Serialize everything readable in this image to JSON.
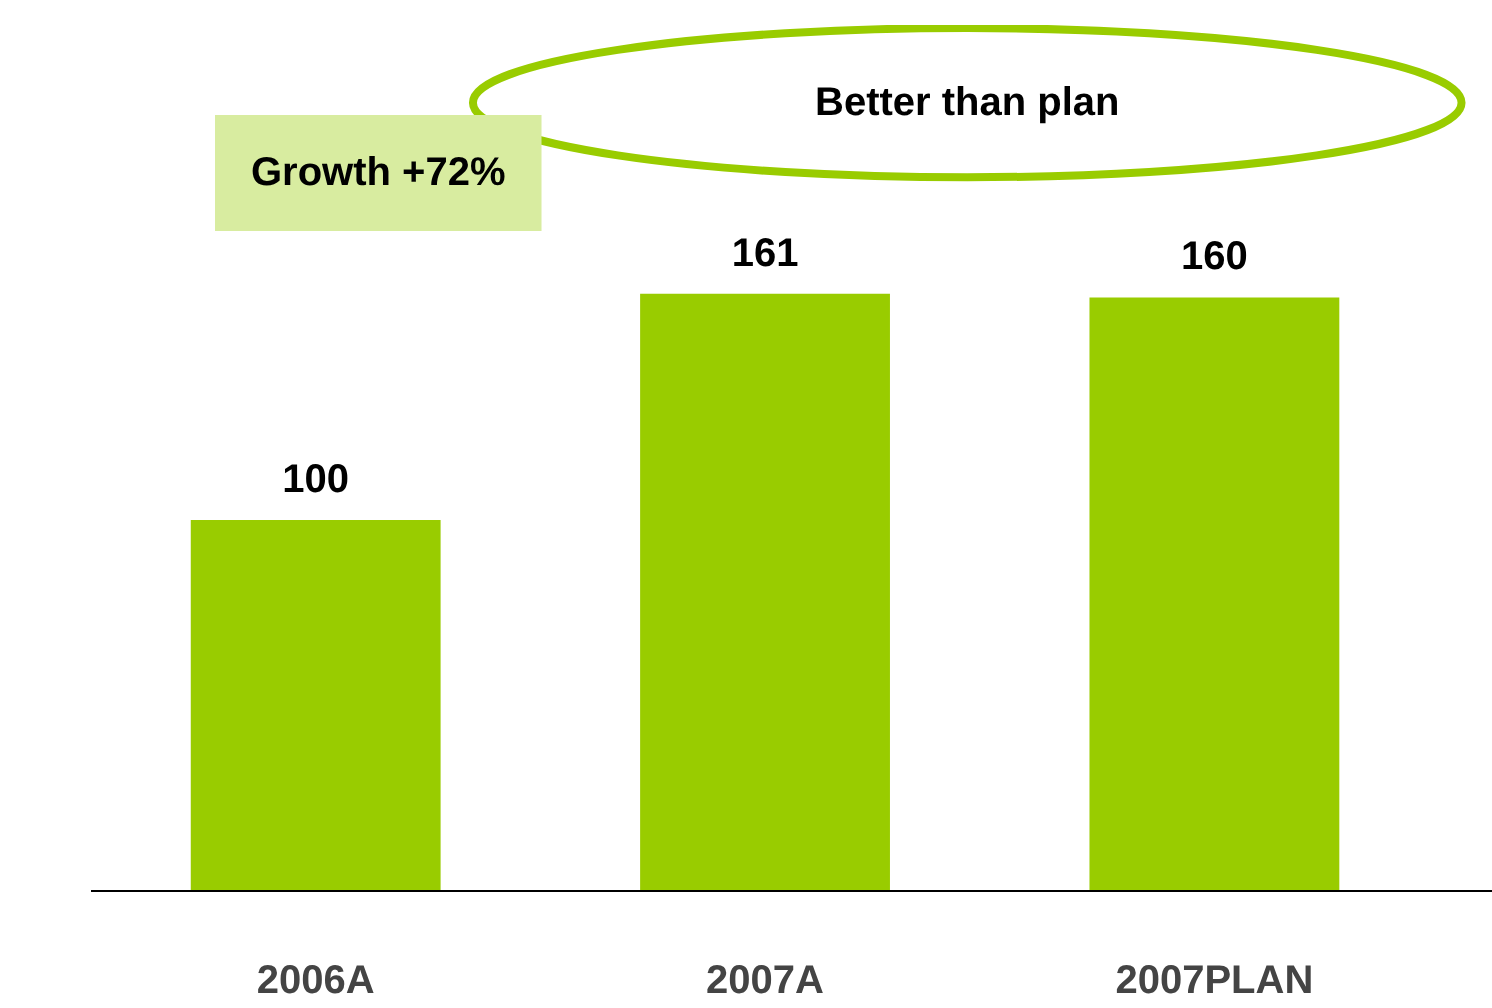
{
  "chart_data": {
    "type": "bar",
    "categories": [
      "2006A",
      "2007A",
      "2007PLAN"
    ],
    "values": [
      100,
      161,
      160
    ],
    "color": "#99cc00",
    "data_labels": true,
    "grid": false,
    "annotations": [
      "Growth +72%",
      "Better than plan"
    ]
  }
}
